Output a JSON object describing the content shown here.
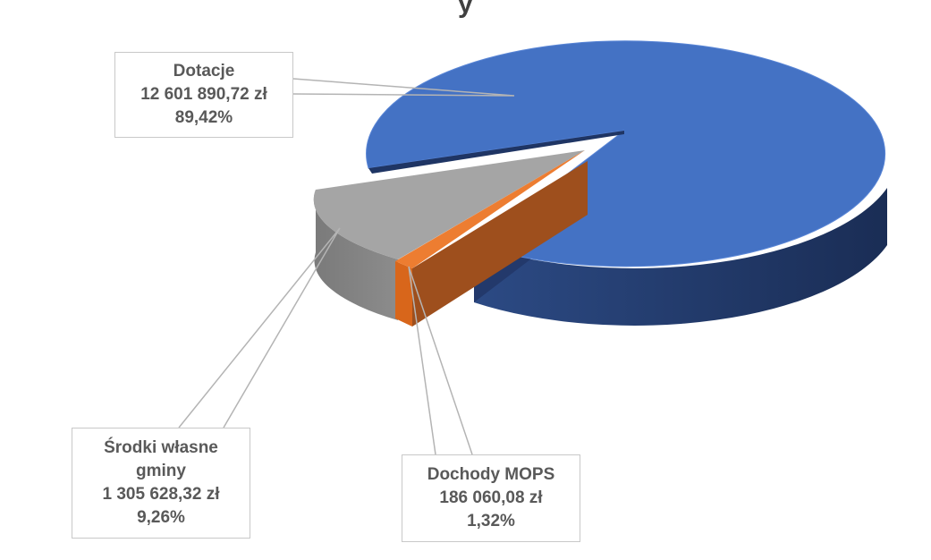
{
  "chart_data": {
    "type": "pie",
    "style": "3d-exploded",
    "title_fragment": "y",
    "slices": [
      {
        "label_lines": [
          "Dotacje"
        ],
        "value": "12 601 890,72 zł",
        "percent": "89,42%",
        "color": "#4472c4"
      },
      {
        "label_lines": [
          "Dochody MOPS"
        ],
        "value": "186 060,08 zł",
        "percent": "1,32%",
        "color": "#ed7d31"
      },
      {
        "label_lines": [
          "Środki własne",
          "gminy"
        ],
        "value": "1 305 628,32 zł",
        "percent": "9,26%",
        "color": "#a5a5a5"
      }
    ]
  }
}
